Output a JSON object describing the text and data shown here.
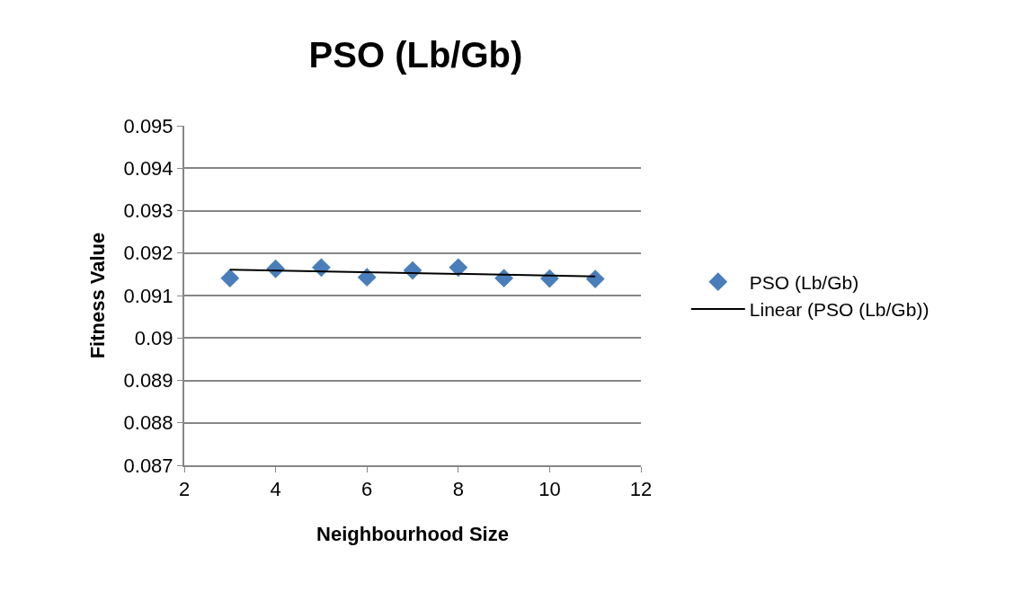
{
  "chart_data": {
    "type": "scatter",
    "title": "PSO (Lb/Gb)",
    "xlabel": "Neighbourhood Size",
    "ylabel": "Fitness Value",
    "series": [
      {
        "name": "PSO (Lb/Gb)",
        "color": "#4a7ebb",
        "marker": "diamond",
        "x": [
          3,
          4,
          5,
          6,
          7,
          8,
          9,
          10,
          11
        ],
        "values": [
          0.09141,
          0.09163,
          0.09166,
          0.09143,
          0.09159,
          0.09166,
          0.09141,
          0.0914,
          0.09139
        ]
      },
      {
        "name": "Linear (PSO (Lb/Gb))",
        "type": "line",
        "color": "#000000",
        "line_style": "solid",
        "x": [
          3,
          11
        ],
        "values": [
          0.09161,
          0.09145
        ]
      }
    ],
    "xlim": [
      2,
      12
    ],
    "xticks": [
      2,
      4,
      6,
      8,
      10,
      12
    ],
    "ylim": [
      0.087,
      0.095
    ],
    "yticks": [
      0.087,
      0.088,
      0.089,
      0.09,
      0.091,
      0.092,
      0.093,
      0.094,
      0.095
    ],
    "grid": "y",
    "legend": "right"
  }
}
